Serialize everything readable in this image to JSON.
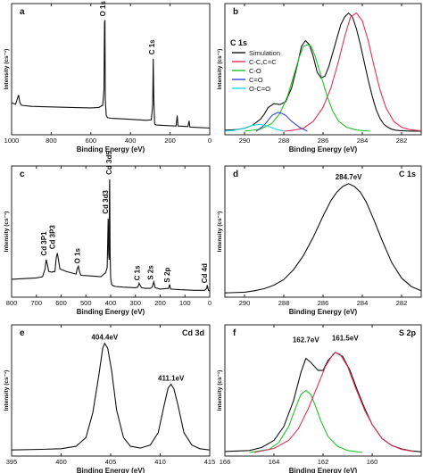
{
  "panels": [
    {
      "letter": "a",
      "xlabel": "Binding Energy (eV)",
      "ylabel": "Intensity (cs⁻¹)",
      "annotations": [
        "O 1s",
        "C 1s"
      ]
    },
    {
      "letter": "b",
      "xlabel": "Binding Energy (eV)",
      "ylabel": "Intensity (cs⁻¹)",
      "corner_label": "C 1s",
      "legend": [
        "Simulation",
        "C-C,C=C",
        "C-O",
        "C=O",
        "O-C=O"
      ]
    },
    {
      "letter": "c",
      "xlabel": "Binding Energy (eV)",
      "ylabel": "Intensity (cs⁻¹)",
      "annotations": [
        "Cd 3P1",
        "Cd 3P3",
        "O 1s",
        "Cd 3d3",
        "Cd 3d5",
        "C 1s",
        "S 2s",
        "S 2p",
        "Cd 4d"
      ]
    },
    {
      "letter": "d",
      "xlabel": "Binding Energy (eV)",
      "ylabel": "Intensity (cs⁻¹)",
      "corner_label": "C 1s",
      "annotations": [
        "284.7eV"
      ]
    },
    {
      "letter": "e",
      "xlabel": "Binding Energy (eV)",
      "ylabel": "Intensity (cs⁻¹)",
      "corner_label": "Cd 3d",
      "annotations": [
        "404.4eV",
        "411.1eV"
      ]
    },
    {
      "letter": "f",
      "xlabel": "Binding Energy (eV)",
      "ylabel": "Intensity (cs⁻¹)",
      "corner_label": "S 2p",
      "annotations": [
        "162.7eV",
        "161.5eV"
      ]
    }
  ],
  "chart_data": [
    {
      "type": "line",
      "panel": "a",
      "xlim": [
        1000,
        0
      ],
      "xticks": [
        1000,
        800,
        600,
        400,
        200,
        0
      ],
      "colors": [
        "#111111"
      ],
      "series": [
        {
          "x": [
            1000,
            980,
            965,
            958,
            950,
            900,
            800,
            700,
            600,
            560,
            540,
            534,
            531,
            529,
            527,
            522,
            515,
            500,
            450,
            400,
            320,
            295,
            288,
            285,
            282,
            278,
            270,
            230,
            170,
            164,
            160,
            110,
            104,
            100,
            50,
            0
          ],
          "y": [
            55,
            52,
            70,
            55,
            50,
            48,
            47,
            46,
            45,
            46,
            50,
            80,
            210,
            215,
            60,
            30,
            26,
            25,
            24,
            23,
            21,
            22,
            50,
            140,
            60,
            14,
            12,
            11,
            10,
            30,
            10,
            9,
            20,
            8,
            7,
            6
          ]
        }
      ]
    },
    {
      "type": "line",
      "panel": "b",
      "xlim": [
        291,
        281
      ],
      "xticks": [
        290,
        288,
        286,
        284,
        282
      ],
      "series": [
        {
          "name": "Simulation",
          "color": "#111111",
          "x": [
            291,
            290.4,
            290,
            289.6,
            289.2,
            289,
            288.8,
            288.5,
            288.2,
            287.9,
            287.6,
            287.3,
            287.1,
            286.9,
            286.7,
            286.5,
            286.3,
            286.1,
            285.9,
            285.7,
            285.5,
            285.3,
            285.1,
            284.9,
            284.7,
            284.5,
            284.3,
            284.1,
            283.9,
            283.7,
            283.5,
            283.3,
            283.1,
            282.9,
            282.7,
            282.5,
            282.3,
            282.1,
            281.9,
            281.7,
            281.5,
            281
          ],
          "y": [
            0.5,
            0.8,
            1.5,
            3,
            6,
            8.5,
            12,
            14,
            13.5,
            15,
            22,
            34,
            43,
            46,
            44,
            38,
            30,
            27,
            28,
            33,
            40,
            47,
            54,
            58,
            60,
            58,
            52,
            44,
            35,
            26,
            18,
            11,
            6.5,
            3.5,
            2,
            1,
            0.5,
            0.3,
            0.2,
            0.1,
            0.05,
            0
          ]
        },
        {
          "name": "C-C,C=C",
          "color": "#e0305a",
          "x": [
            288,
            287.5,
            287,
            286.5,
            286,
            285.6,
            285.2,
            284.9,
            284.6,
            284.3,
            284,
            283.7,
            283.4,
            283.1,
            282.8,
            282.4,
            282,
            281.6,
            281
          ],
          "y": [
            0,
            0.5,
            1.5,
            5,
            12,
            22,
            36,
            48,
            58,
            60,
            56,
            46,
            33,
            21,
            12,
            5,
            2,
            0.8,
            0.2
          ]
        },
        {
          "name": "C-O",
          "color": "#22c02a",
          "x": [
            290,
            289.2,
            288.6,
            288.2,
            287.8,
            287.5,
            287.2,
            287,
            286.8,
            286.6,
            286.4,
            286.1,
            285.8,
            285.5,
            285.2,
            284.8,
            284.3,
            283.6
          ],
          "y": [
            0,
            1,
            4,
            9,
            18,
            28,
            38,
            43,
            44,
            43,
            38,
            28,
            18,
            10,
            5,
            2,
            0.6,
            0
          ]
        },
        {
          "name": "C=O",
          "color": "#3347d4",
          "x": [
            289.4,
            289,
            288.6,
            288.3,
            288.1,
            287.9,
            287.6,
            287.2,
            286.8
          ],
          "y": [
            0,
            3,
            8,
            9.5,
            9,
            8,
            5,
            2,
            0
          ]
        },
        {
          "name": "O-C=O",
          "color": "#20d6e0",
          "x": [
            291,
            290.5,
            290,
            289.6,
            289.2,
            288.8,
            288.4,
            288
          ],
          "y": [
            0,
            0.5,
            1.5,
            3,
            3.5,
            2.5,
            1,
            0
          ]
        }
      ]
    },
    {
      "type": "line",
      "panel": "c",
      "xlim": [
        800,
        0
      ],
      "xticks": [
        800,
        700,
        600,
        500,
        400,
        300,
        200,
        100,
        0
      ],
      "colors": [
        "#111111"
      ],
      "series": [
        {
          "x": [
            800,
            750,
            700,
            675,
            665,
            660,
            655,
            650,
            640,
            625,
            620,
            615,
            605,
            580,
            540,
            535,
            530,
            526,
            520,
            480,
            440,
            420,
            414,
            412,
            410,
            408,
            406,
            405,
            404,
            402,
            400,
            396,
            390,
            380,
            350,
            300,
            290,
            285,
            280,
            275,
            260,
            240,
            232,
            226,
            220,
            200,
            166,
            162,
            158,
            120,
            60,
            20,
            12,
            10,
            5,
            0
          ],
          "y": [
            22,
            23,
            24,
            26,
            38,
            52,
            44,
            34,
            33,
            34,
            55,
            62,
            38,
            34,
            30,
            38,
            42,
            34,
            28,
            27,
            26,
            32,
            40,
            80,
            115,
            60,
            52,
            150,
            175,
            60,
            24,
            14,
            12,
            11,
            10,
            9,
            10,
            16,
            12,
            9,
            8,
            8,
            10,
            18,
            9,
            7,
            8,
            14,
            7,
            6,
            5,
            5,
            8,
            13,
            5,
            4
          ]
        }
      ]
    },
    {
      "type": "line",
      "panel": "d",
      "xlim": [
        291,
        281
      ],
      "xticks": [
        290,
        288,
        286,
        284,
        282
      ],
      "colors": [
        "#111111"
      ],
      "series": [
        {
          "x": [
            291,
            290,
            289.5,
            289,
            288.5,
            288,
            287.5,
            287,
            286.5,
            286,
            285.6,
            285.3,
            285,
            284.7,
            284.4,
            284.1,
            283.8,
            283.4,
            283,
            282.5,
            282,
            281.5,
            281
          ],
          "y": [
            0.5,
            1,
            2,
            3.5,
            6,
            10,
            17,
            27,
            40,
            55,
            66,
            72,
            76,
            78,
            76,
            72,
            65,
            52,
            38,
            22,
            11,
            5,
            2
          ]
        }
      ]
    },
    {
      "type": "line",
      "panel": "e",
      "xlim": [
        395,
        415
      ],
      "xticks": [
        395,
        400,
        405,
        410,
        415
      ],
      "colors": [
        "#111111"
      ],
      "series": [
        {
          "x": [
            395,
            398,
            400,
            401.5,
            402.5,
            403.2,
            403.8,
            404.2,
            404.4,
            404.7,
            405.1,
            405.6,
            406.3,
            407,
            408,
            409,
            409.8,
            410.4,
            410.8,
            411.1,
            411.4,
            411.8,
            412.4,
            413.2,
            414,
            415
          ],
          "y": [
            2,
            2.5,
            3,
            5,
            12,
            32,
            62,
            84,
            88,
            84,
            66,
            34,
            12,
            5,
            3.5,
            6,
            16,
            38,
            52,
            55,
            51,
            38,
            16,
            6,
            3,
            2
          ]
        }
      ]
    },
    {
      "type": "line",
      "panel": "f",
      "xlim": [
        166,
        158
      ],
      "xticks": [
        166,
        164,
        162,
        160
      ],
      "series": [
        {
          "color": "#111111",
          "x": [
            166,
            165,
            164.5,
            164,
            163.6,
            163.2,
            162.9,
            162.7,
            162.5,
            162.2,
            162,
            161.8,
            161.5,
            161.2,
            160.9,
            160.6,
            160.3,
            160,
            159.6,
            159.2,
            158.8,
            158.4,
            158
          ],
          "y": [
            0.5,
            1,
            2.5,
            6,
            13,
            26,
            40,
            47,
            45,
            41,
            41,
            46,
            50,
            48,
            41,
            31,
            22,
            14,
            7,
            3.5,
            1.8,
            0.8,
            0.3
          ]
        },
        {
          "color": "#22c02a",
          "x": [
            165,
            164.2,
            163.8,
            163.4,
            163.1,
            162.9,
            162.7,
            162.5,
            162.3,
            162.1,
            161.8,
            161.4,
            161,
            160.4
          ],
          "y": [
            0,
            1.5,
            5,
            13,
            23,
            29,
            31,
            29,
            23,
            16,
            8,
            3,
            1,
            0
          ]
        },
        {
          "color": "#e0305a",
          "x": [
            164.8,
            164,
            163.4,
            163,
            162.6,
            162.2,
            161.9,
            161.6,
            161.5,
            161.3,
            161,
            160.7,
            160.3,
            160,
            159.6,
            159.2,
            158.8,
            158.3
          ],
          "y": [
            0,
            2,
            6,
            12,
            22,
            34,
            43,
            49,
            50,
            49,
            43,
            33,
            21,
            14,
            7,
            3.5,
            1.5,
            0.5
          ]
        }
      ]
    }
  ]
}
